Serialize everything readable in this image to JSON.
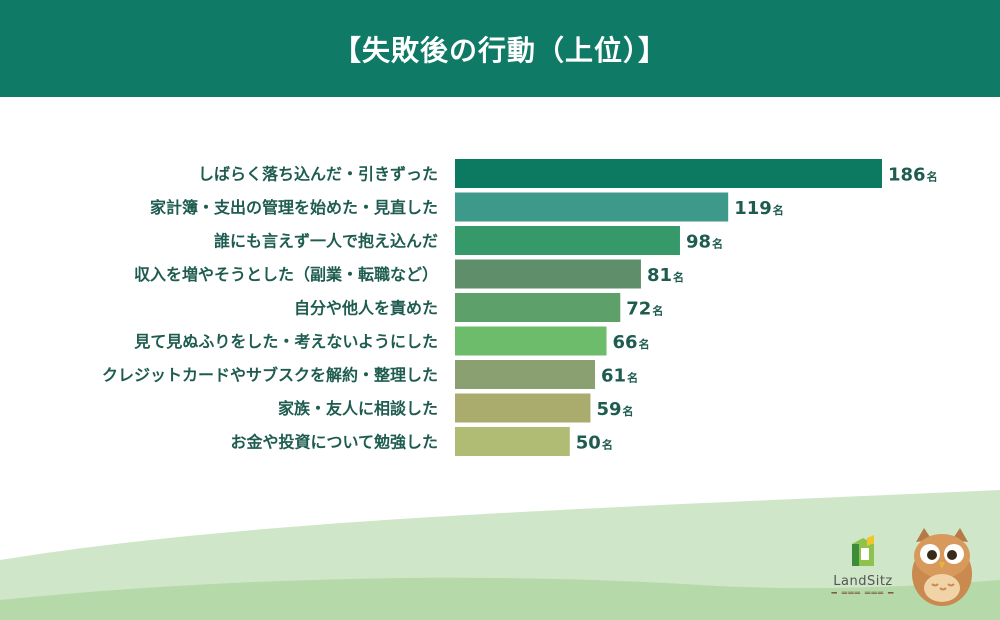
{
  "title": "【失敗後の行動（上位）】",
  "unit": "名",
  "brand": {
    "name": "LandSitz",
    "tagline": "━ ═══ ═══ ━"
  },
  "colors": {
    "header": "#0f7a66",
    "bars": [
      "#0b7a60",
      "#3d9a8a",
      "#35996a",
      "#5f8f6a",
      "#5ea06a",
      "#6cbc6c",
      "#8aa070",
      "#a9ac6c",
      "#b0bc74"
    ]
  },
  "chart_data": {
    "type": "bar",
    "orientation": "horizontal",
    "title": "【失敗後の行動（上位）】",
    "categories": [
      "しばらく落ち込んだ・引きずった",
      "家計簿・支出の管理を始めた・見直した",
      "誰にも言えず一人で抱え込んだ",
      "収入を増やそうとした（副業・転職など）",
      "自分や他人を責めた",
      "見て見ぬふりをした・考えないようにした",
      "クレジットカードやサブスクを解約・整理した",
      "家族・友人に相談した",
      "お金や投資について勉強した"
    ],
    "values": [
      186,
      119,
      98,
      81,
      72,
      66,
      61,
      59,
      50
    ],
    "unit": "名",
    "xlim": [
      0,
      190
    ],
    "grid": false,
    "legend": "none"
  }
}
